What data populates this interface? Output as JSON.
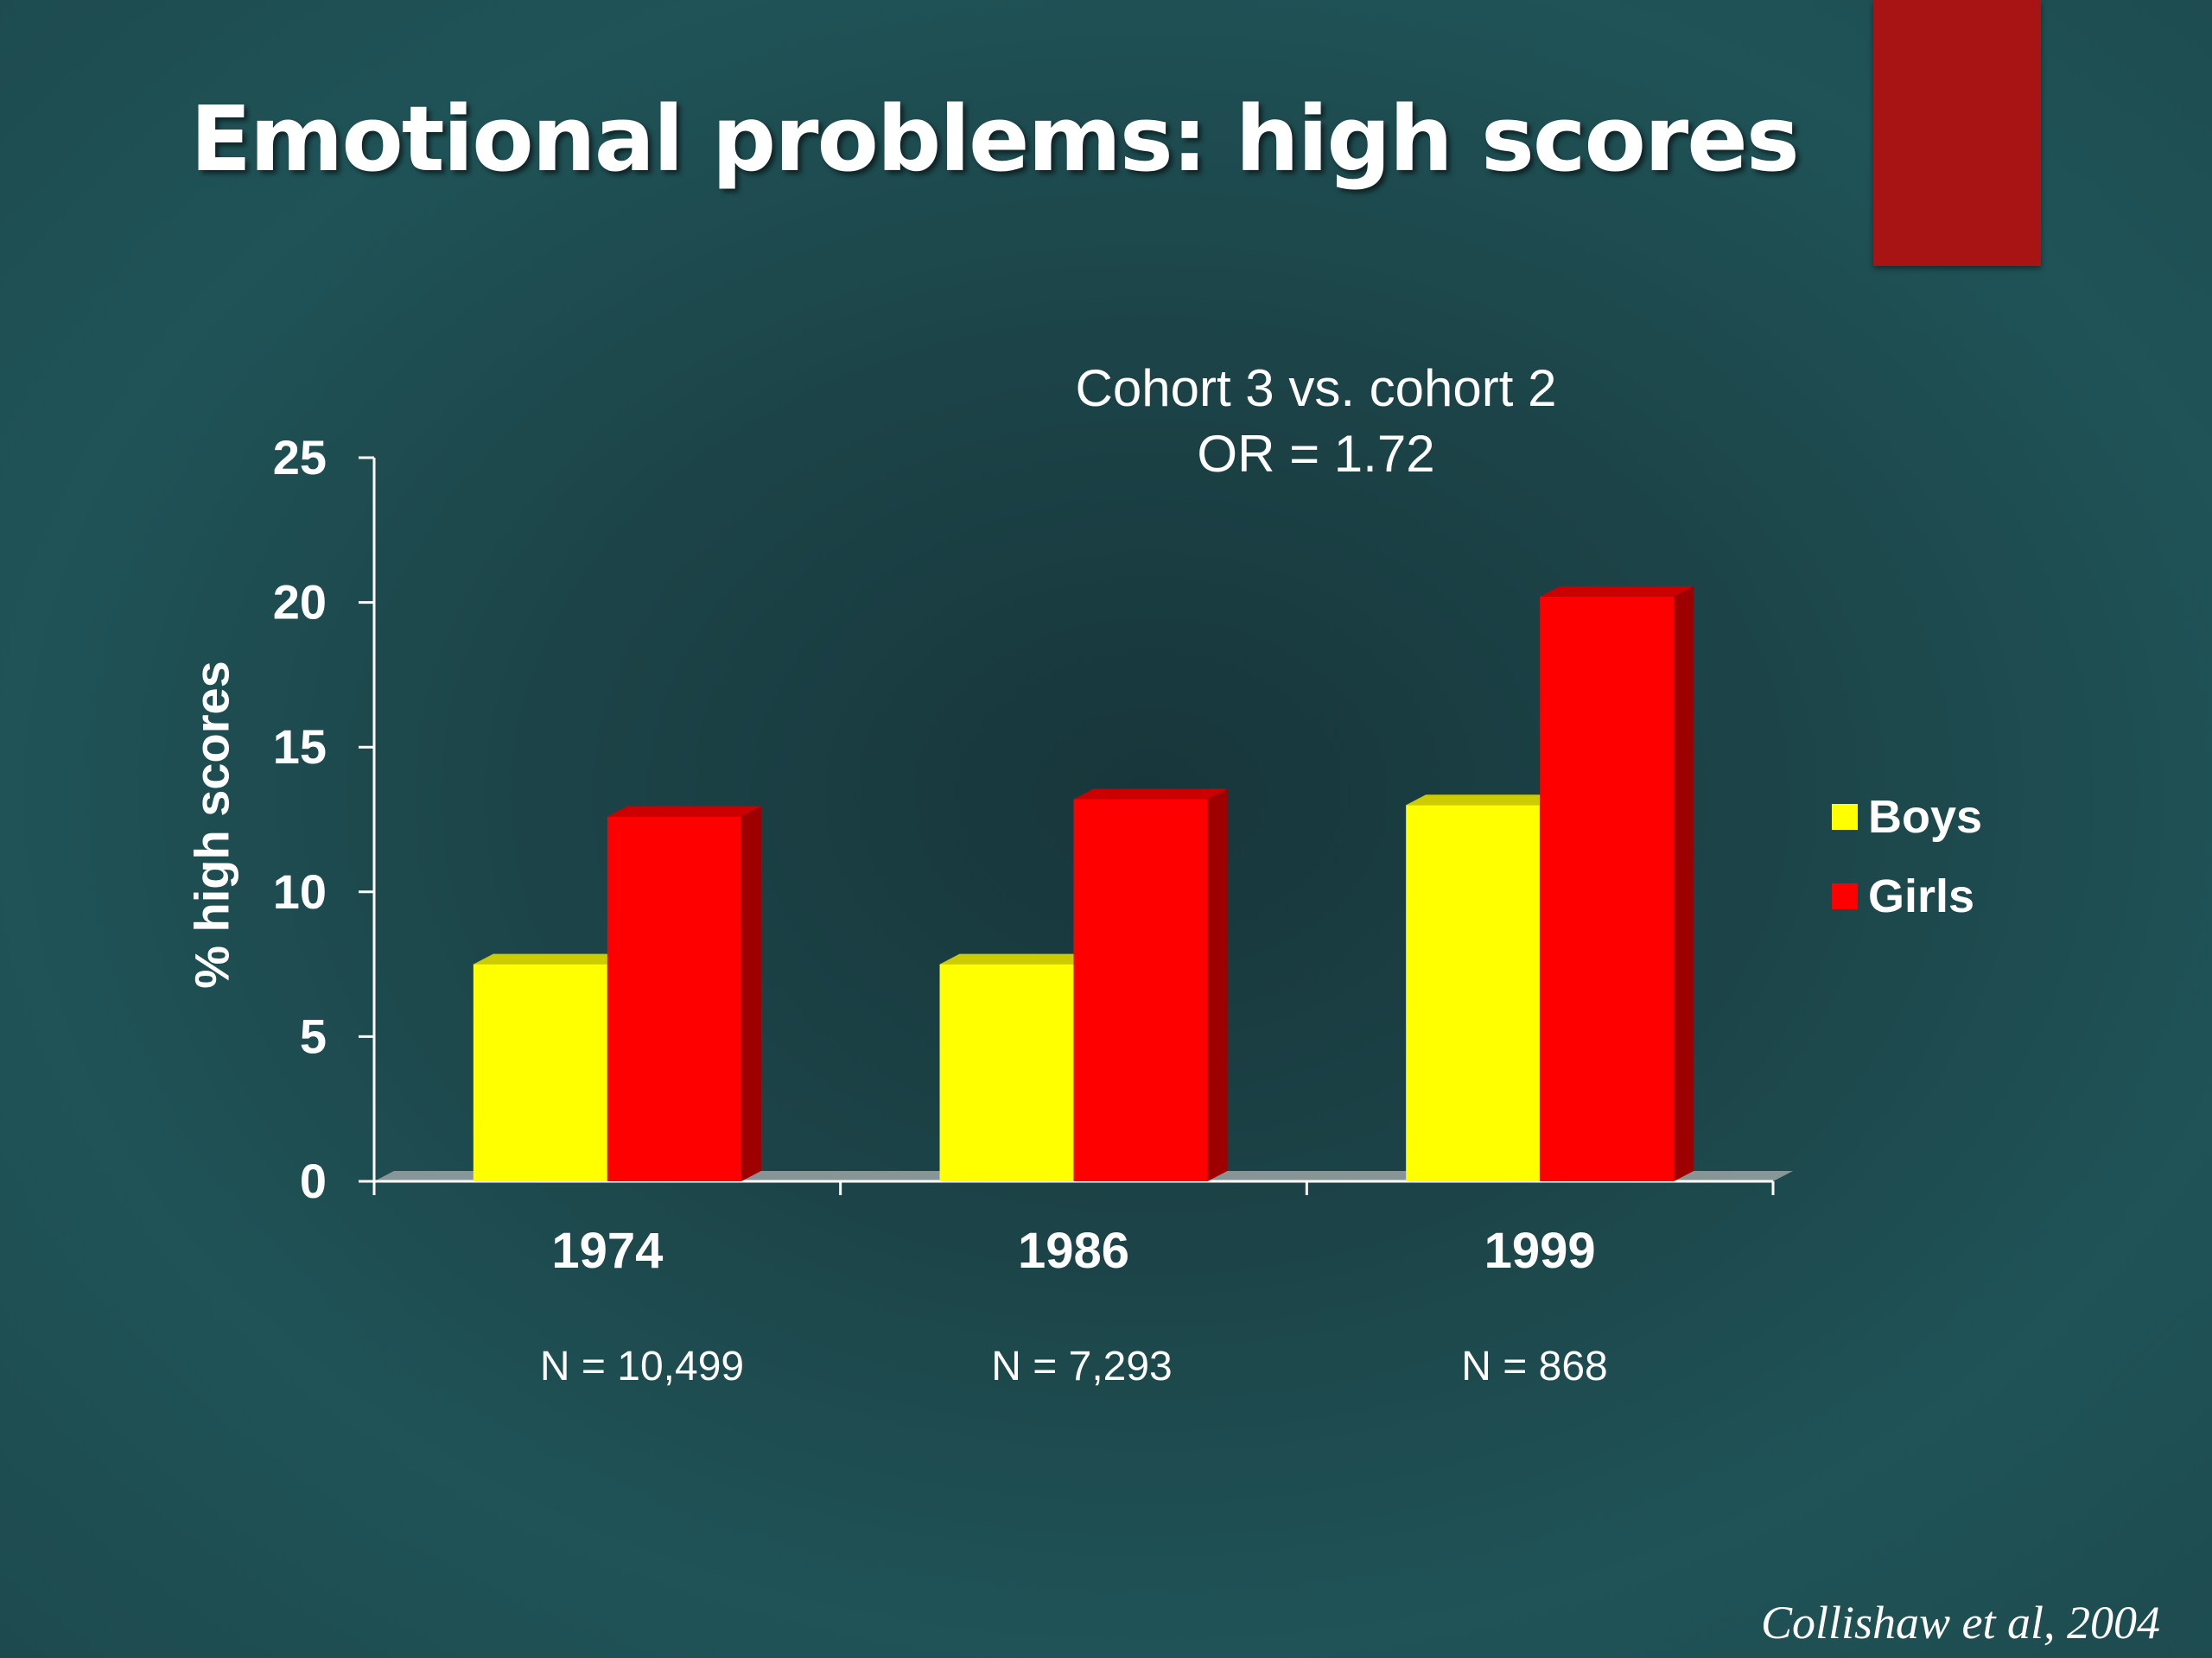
{
  "slide": {
    "title": "Emotional problems: high scores",
    "accent_color": "#a81414",
    "source": "Collishaw et al, 2004"
  },
  "annotation": {
    "line1": "Cohort 3 vs. cohort 2",
    "line2": "OR = 1.72"
  },
  "sample_sizes": [
    {
      "category": "1974",
      "label": "N = 10,499"
    },
    {
      "category": "1986",
      "label": "N = 7,293"
    },
    {
      "category": "1999",
      "label": "N = 868"
    }
  ],
  "chart_data": {
    "type": "bar",
    "title": "",
    "xlabel": "",
    "ylabel": "% high scores",
    "categories": [
      "1974",
      "1986",
      "1999"
    ],
    "series": [
      {
        "name": "Boys",
        "color": "#ffff00",
        "values": [
          7.5,
          7.5,
          13
        ]
      },
      {
        "name": "Girls",
        "color": "#ff0000",
        "values": [
          12.6,
          13.2,
          20.2
        ]
      }
    ],
    "ylim": [
      0,
      25
    ],
    "yticks": [
      "0",
      "5",
      "10",
      "15",
      "20",
      "25"
    ],
    "grid": false,
    "legend_position": "right",
    "style": "3d-clustered-bar"
  }
}
